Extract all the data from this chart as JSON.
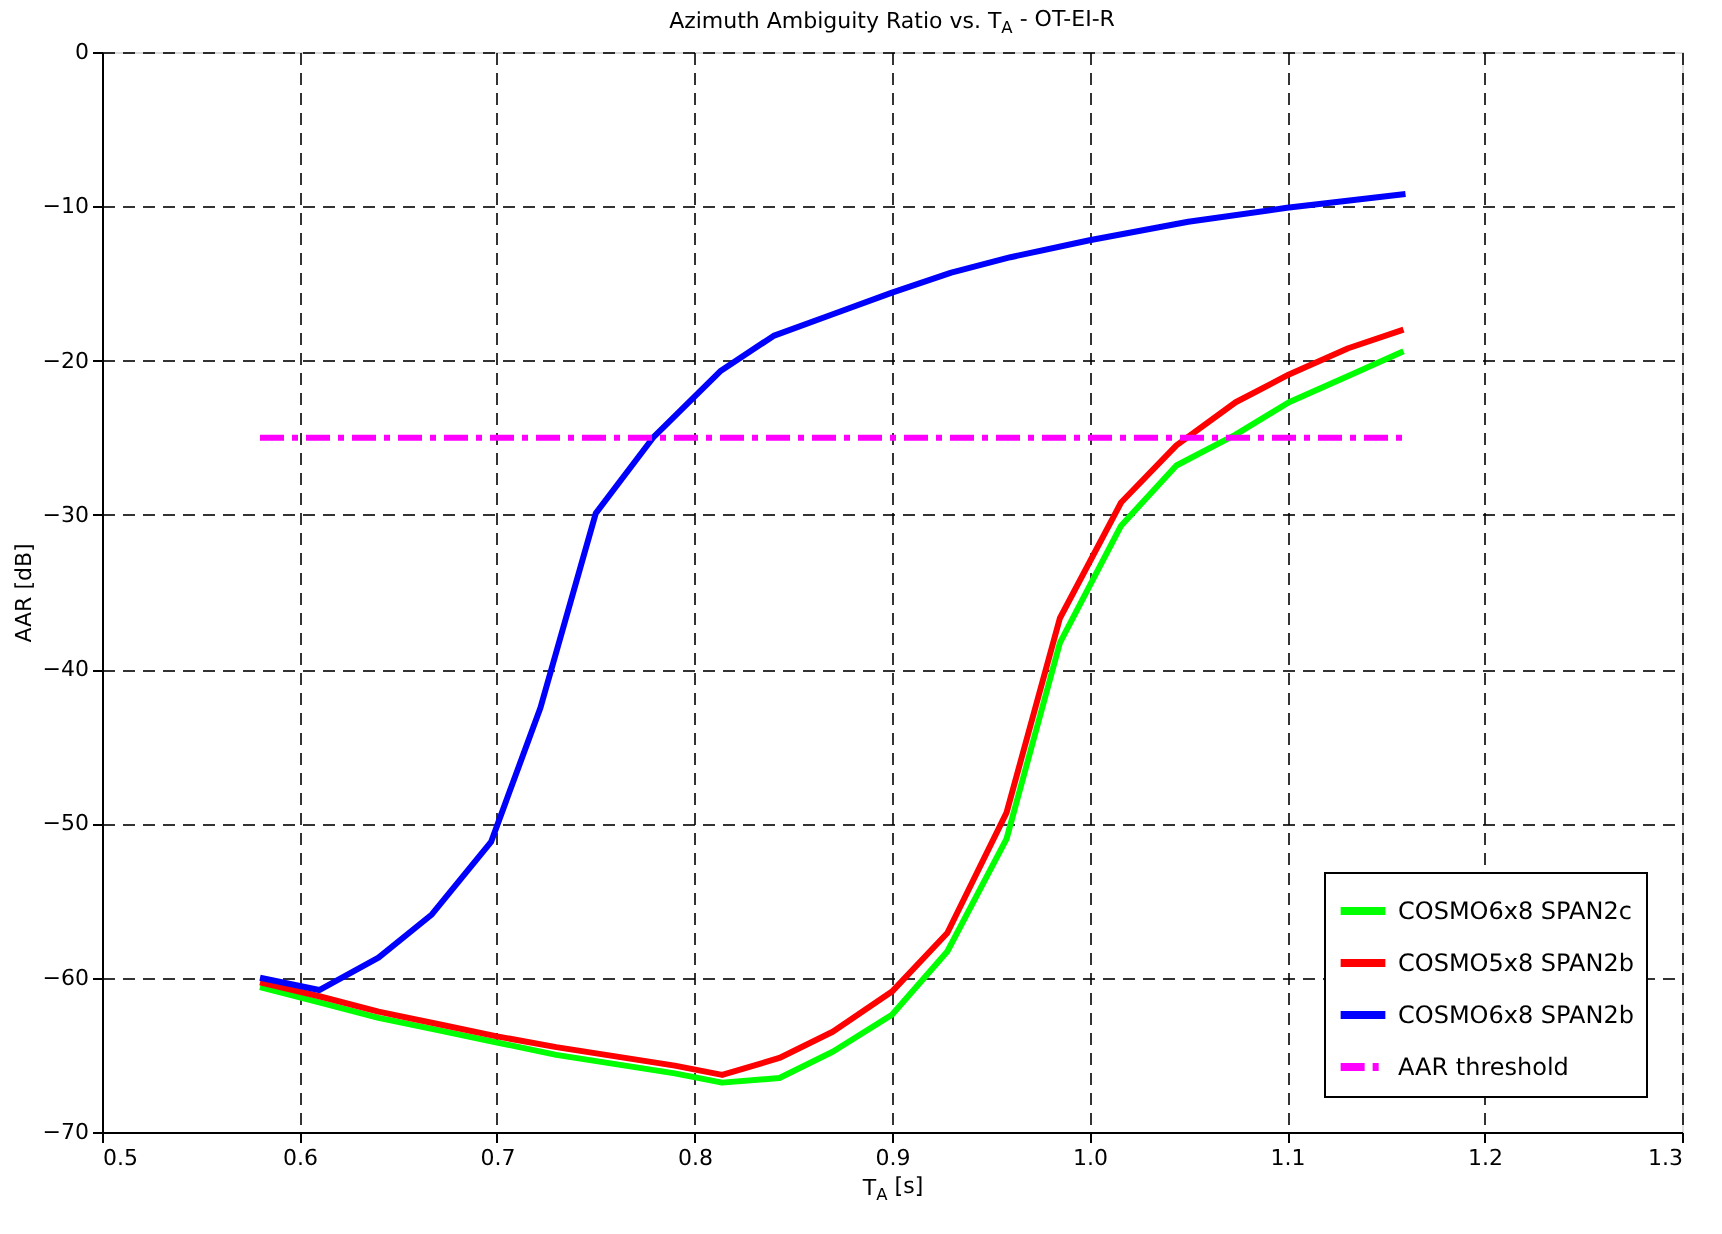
{
  "chart_data": {
    "type": "line",
    "title": "Azimuth Ambiguity Ratio vs. T$_{A}$ - OT-EI-R",
    "xlabel": "T$_{A}$ [s]",
    "ylabel": "AAR [dB]",
    "xlim": [
      0.5,
      1.3
    ],
    "xticks": [
      0.5,
      0.6,
      0.7,
      0.8,
      0.9,
      {
        "value": 1,
        "label": "1.0"
      },
      1.1,
      1.2,
      1.3
    ],
    "ylim": [
      -70,
      0
    ],
    "yticks": [
      -70,
      -60,
      -50,
      -40,
      -30,
      -20,
      -10,
      0
    ],
    "grid": true,
    "legend": "bottom right",
    "line_style": "solid",
    "series": [
      {
        "name": "COSMO6x8 SPAN2c",
        "color": "#00ff00",
        "x": [
          0.58,
          0.61,
          0.64,
          0.67,
          0.7,
          0.73,
          0.76,
          0.79,
          0.814,
          0.843,
          0.87,
          0.9,
          0.928,
          0.958,
          0.985,
          1.016,
          1.044,
          1.074,
          1.101,
          1.131,
          1.159
        ],
        "values": [
          -60.6,
          -61.6,
          -62.6,
          -63.4,
          -64.2,
          -65,
          -65.6,
          -66.2,
          -66.8,
          -66.5,
          -64.8,
          -62.4,
          -58.3,
          -51,
          -38.3,
          -30.7,
          -26.8,
          -24.8,
          -22.7,
          -21,
          -19.4
        ]
      },
      {
        "name": "COSMO5x8 SPAN2b",
        "color": "#ff0000",
        "x": [
          0.58,
          0.61,
          0.64,
          0.67,
          0.7,
          0.73,
          0.76,
          0.79,
          0.814,
          0.843,
          0.87,
          0.9,
          0.928,
          0.958,
          0.985,
          1.016,
          1.044,
          1.074,
          1.101,
          1.131,
          1.159
        ],
        "values": [
          -60.3,
          -61.2,
          -62.2,
          -63,
          -63.8,
          -64.5,
          -65.1,
          -65.7,
          -66.3,
          -65.2,
          -63.5,
          -60.9,
          -57.1,
          -49.3,
          -36.7,
          -29.2,
          -25.5,
          -22.7,
          -20.9,
          -19.2,
          -18
        ]
      },
      {
        "name": "COSMO6x8 SPAN2b",
        "color": "#0000ff",
        "x": [
          0.58,
          0.61,
          0.64,
          0.667,
          0.697,
          0.722,
          0.75,
          0.779,
          0.813,
          0.84,
          0.87,
          0.9,
          0.93,
          0.96,
          1.0,
          1.05,
          1.1,
          1.16
        ],
        "values": [
          -60,
          -60.8,
          -58.7,
          -55.9,
          -51.2,
          -42.5,
          -29.9,
          -25,
          -20.7,
          -18.4,
          -17,
          -15.6,
          -14.3,
          -13.3,
          -12.2,
          -11,
          -10.1,
          -9.2
        ]
      },
      {
        "name": "AAR threshold",
        "color": "#ff00ff",
        "line_style": "dashed",
        "x": [
          0.58,
          1.16
        ],
        "values": [
          -25,
          -25
        ]
      }
    ]
  }
}
